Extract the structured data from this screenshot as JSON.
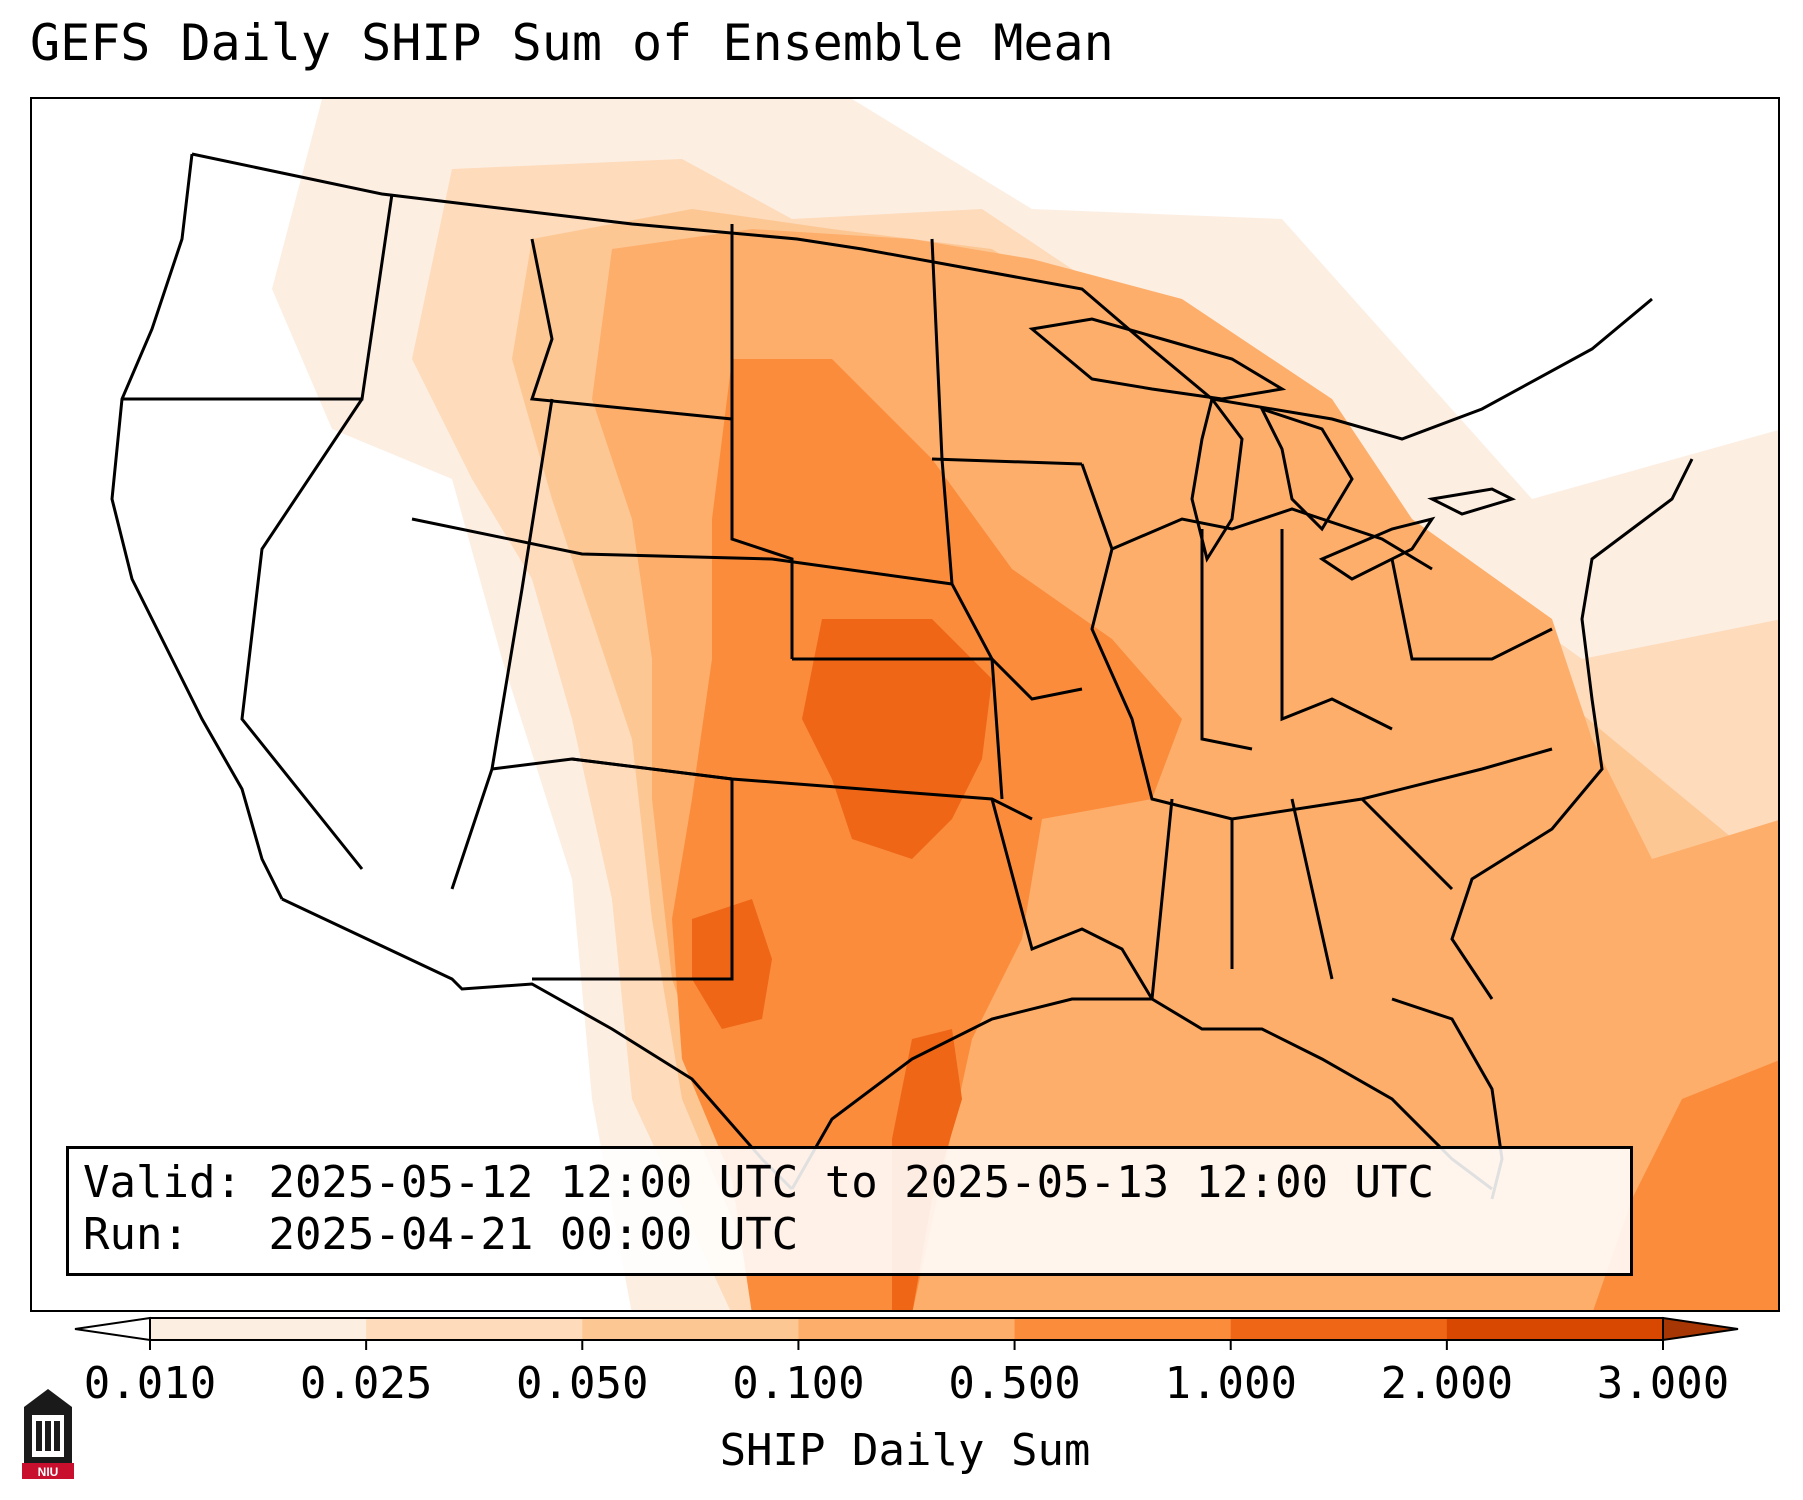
{
  "title": "GEFS Daily SHIP Sum of Ensemble Mean",
  "info": {
    "valid_label": "Valid:",
    "valid_value": "2025-05-12 12:00 UTC to 2025-05-13 12:00 UTC",
    "run_label": "Run:",
    "run_value": "2025-04-21 00:00 UTC"
  },
  "colorbar": {
    "title": "SHIP Daily Sum",
    "ticks": [
      "0.010",
      "0.025",
      "0.050",
      "0.100",
      "0.500",
      "1.000",
      "2.000",
      "3.000"
    ],
    "colors": [
      "#fdeee2",
      "#fddbbb",
      "#fdc794",
      "#fdae6b",
      "#fb8c3c",
      "#ee6616",
      "#d94801",
      "#a63603"
    ],
    "extend": "both"
  },
  "logo": {
    "text": "NIU",
    "accent": "#c8102e"
  },
  "map": {
    "region": "Contiguous United States",
    "basemap": "state and country borders, coastlines",
    "shading_colors": {
      "level_0_010": "#fdeee2",
      "level_0_025": "#fddbbb",
      "level_0_050": "#fdc794",
      "level_0_100": "#fdae6b",
      "level_0_500": "#fb8c3c",
      "level_1_000": "#ee6616"
    }
  }
}
